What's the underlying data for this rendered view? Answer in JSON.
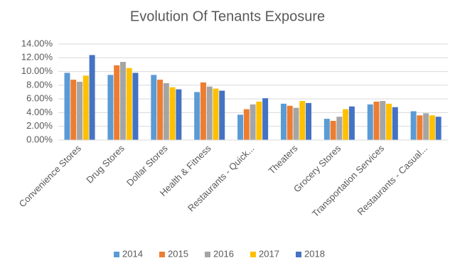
{
  "chart_data": {
    "type": "bar",
    "title": "Evolution Of Tenants Exposure",
    "categories": [
      "Convenience Stores",
      "Drug Stores",
      "Dollar Stores",
      "Health & Fitness",
      "Restaurants - Quick...",
      "Theaters",
      "Grocery Stores",
      "Transportation Services",
      "Restaurants - Casual..."
    ],
    "series": [
      {
        "name": "2014",
        "color": "#5b9bd5",
        "values": [
          9.8,
          9.5,
          9.5,
          7.0,
          3.7,
          5.3,
          3.1,
          5.2,
          4.2
        ]
      },
      {
        "name": "2015",
        "color": "#ed7d31",
        "values": [
          8.8,
          10.9,
          8.8,
          8.4,
          4.5,
          5.0,
          2.8,
          5.6,
          3.6
        ]
      },
      {
        "name": "2016",
        "color": "#a5a5a5",
        "values": [
          8.5,
          11.4,
          8.3,
          7.8,
          5.2,
          4.7,
          3.4,
          5.7,
          3.9
        ]
      },
      {
        "name": "2017",
        "color": "#ffc000",
        "values": [
          9.4,
          10.5,
          7.7,
          7.5,
          5.6,
          5.7,
          4.5,
          5.3,
          3.6
        ]
      },
      {
        "name": "2018",
        "color": "#4472c4",
        "values": [
          12.4,
          9.8,
          7.4,
          7.2,
          6.1,
          5.4,
          4.9,
          4.8,
          3.4
        ]
      }
    ],
    "ylim": [
      0,
      14
    ],
    "yticks": [
      {
        "value": 0,
        "label": "0.00%"
      },
      {
        "value": 2,
        "label": "2.00%"
      },
      {
        "value": 4,
        "label": "4.00%"
      },
      {
        "value": 6,
        "label": "6.00%"
      },
      {
        "value": 8,
        "label": "8.00%"
      },
      {
        "value": 10,
        "label": "10.00%"
      },
      {
        "value": 12,
        "label": "12.00%"
      },
      {
        "value": 14,
        "label": "14.00%"
      }
    ],
    "grid": true,
    "legend": "bottom"
  }
}
